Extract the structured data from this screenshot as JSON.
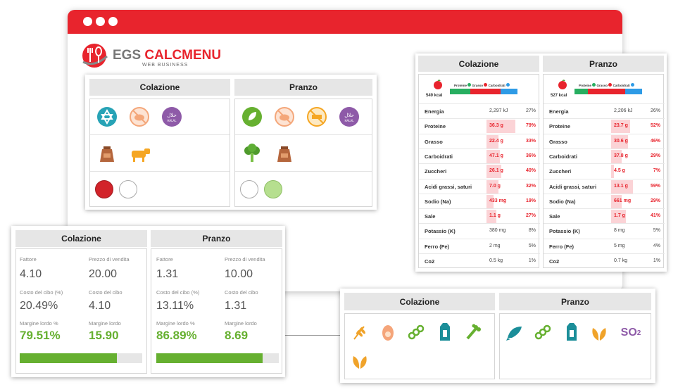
{
  "app": {
    "brand_prefix": "EGS ",
    "brand_name": "CALCMENU",
    "brand_sub": "WEB BUSINESS"
  },
  "colors": {
    "brand_red": "#e8242d",
    "green": "#66b030",
    "protein_green": "#27ae60",
    "fat_red": "#e8242d",
    "carb_blue": "#2e9be6"
  },
  "diet_panel": {
    "columns": [
      {
        "title": "Colazione",
        "row1_icons": [
          "kosher-icon",
          "no-pork-icon",
          "halal-icon"
        ],
        "row2_icons": [
          "sack-icon",
          "cow-icon"
        ],
        "row3_circles": [
          "#d2232a",
          "#ffffff"
        ]
      },
      {
        "title": "Pranzo",
        "row1_icons": [
          "vegetarian-leaf-icon",
          "no-pork-icon",
          "no-beef-icon",
          "halal-icon"
        ],
        "row2_icons": [
          "broccoli-icon",
          "sack-icon"
        ],
        "row3_circles": [
          "#ffffff",
          "#b6df8f"
        ]
      }
    ],
    "halal_text": "حلال",
    "halal_sub": "HALAL"
  },
  "nutrition_panel": {
    "legend": {
      "protein": "Proteine",
      "fat": "Grasso",
      "carb": "Carboidrati"
    },
    "columns": [
      {
        "title": "Colazione",
        "kcal": "549 kcal",
        "macro_split": [
          0.3,
          0.45,
          0.25
        ],
        "rows": [
          {
            "label": "Energia",
            "value": "2,297 kJ",
            "pct": "27%",
            "bar": 0,
            "hl": false
          },
          {
            "label": "Proteine",
            "value": "36.3 g",
            "pct": "79%",
            "bar": 0.79,
            "hl": true
          },
          {
            "label": "Grasso",
            "value": "22.4 g",
            "pct": "33%",
            "bar": 0.33,
            "hl": true
          },
          {
            "label": "Carboidrati",
            "value": "47.1 g",
            "pct": "36%",
            "bar": 0.36,
            "hl": true
          },
          {
            "label": "Zuccheri",
            "value": "26.1 g",
            "pct": "40%",
            "bar": 0.4,
            "hl": true
          },
          {
            "label": "Acidi grassi, saturi",
            "value": "7.0 g",
            "pct": "32%",
            "bar": 0.32,
            "hl": true
          },
          {
            "label": "Sodio (Na)",
            "value": "433 mg",
            "pct": "19%",
            "bar": 0.19,
            "hl": true
          },
          {
            "label": "Sale",
            "value": "1.1 g",
            "pct": "27%",
            "bar": 0.27,
            "hl": true
          },
          {
            "label": "Potassio (K)",
            "value": "380 mg",
            "pct": "8%",
            "bar": 0,
            "hl": false
          },
          {
            "label": "Ferro (Fe)",
            "value": "2 mg",
            "pct": "5%",
            "bar": 0,
            "hl": false
          },
          {
            "label": "Co2",
            "value": "0.5 kg",
            "pct": "1%",
            "bar": 0,
            "hl": false
          }
        ]
      },
      {
        "title": "Pranzo",
        "kcal": "527 kcal",
        "macro_split": [
          0.2,
          0.55,
          0.25
        ],
        "rows": [
          {
            "label": "Energia",
            "value": "2,206 kJ",
            "pct": "26%",
            "bar": 0,
            "hl": false
          },
          {
            "label": "Proteine",
            "value": "23.7 g",
            "pct": "52%",
            "bar": 0.52,
            "hl": true
          },
          {
            "label": "Grasso",
            "value": "30.6 g",
            "pct": "46%",
            "bar": 0.46,
            "hl": true
          },
          {
            "label": "Carboidrati",
            "value": "37.8 g",
            "pct": "29%",
            "bar": 0.29,
            "hl": true
          },
          {
            "label": "Zuccheri",
            "value": "4.5 g",
            "pct": "7%",
            "bar": 0.07,
            "hl": true
          },
          {
            "label": "Acidi grassi, saturi",
            "value": "13.1 g",
            "pct": "59%",
            "bar": 0.59,
            "hl": true
          },
          {
            "label": "Sodio (Na)",
            "value": "661 mg",
            "pct": "29%",
            "bar": 0.29,
            "hl": true
          },
          {
            "label": "Sale",
            "value": "1.7 g",
            "pct": "41%",
            "bar": 0.41,
            "hl": true
          },
          {
            "label": "Potassio (K)",
            "value": "8 mg",
            "pct": "5%",
            "bar": 0,
            "hl": false
          },
          {
            "label": "Ferro (Fe)",
            "value": "5 mg",
            "pct": "4%",
            "bar": 0,
            "hl": false
          },
          {
            "label": "Co2",
            "value": "0.7 kg",
            "pct": "1%",
            "bar": 0,
            "hl": false
          }
        ]
      }
    ]
  },
  "finance_panel": {
    "labels": {
      "factor": "Fattore",
      "sale_price": "Prezzo di vendita",
      "food_cost_pct": "Costo del cibo (%)",
      "food_cost": "Costo del cibo",
      "gross_margin_pct": "Margine lordo %",
      "gross_margin": "Margine lordo"
    },
    "columns": [
      {
        "title": "Colazione",
        "factor": "4.10",
        "sale_price": "20.00",
        "food_cost_pct": "20.49%",
        "food_cost": "4.10",
        "gross_margin_pct": "79.51%",
        "gross_margin": "15.90",
        "progress": 0.7951
      },
      {
        "title": "Pranzo",
        "factor": "1.31",
        "sale_price": "10.00",
        "food_cost_pct": "13.11%",
        "food_cost": "1.31",
        "gross_margin_pct": "86.89%",
        "gross_margin": "8.69",
        "progress": 0.8689
      }
    ]
  },
  "allergen_panel": {
    "columns": [
      {
        "title": "Colazione",
        "icons": [
          "wheat-icon",
          "egg-icon",
          "lupin-icon",
          "milk-icon",
          "celery-icon",
          "nuts-icon"
        ]
      },
      {
        "title": "Pranzo",
        "icons": [
          "fish-icon",
          "lupin-icon",
          "milk-icon",
          "nuts-icon",
          "sulphites-icon"
        ]
      }
    ],
    "so2_text": "SO",
    "so2_sub": "2"
  }
}
